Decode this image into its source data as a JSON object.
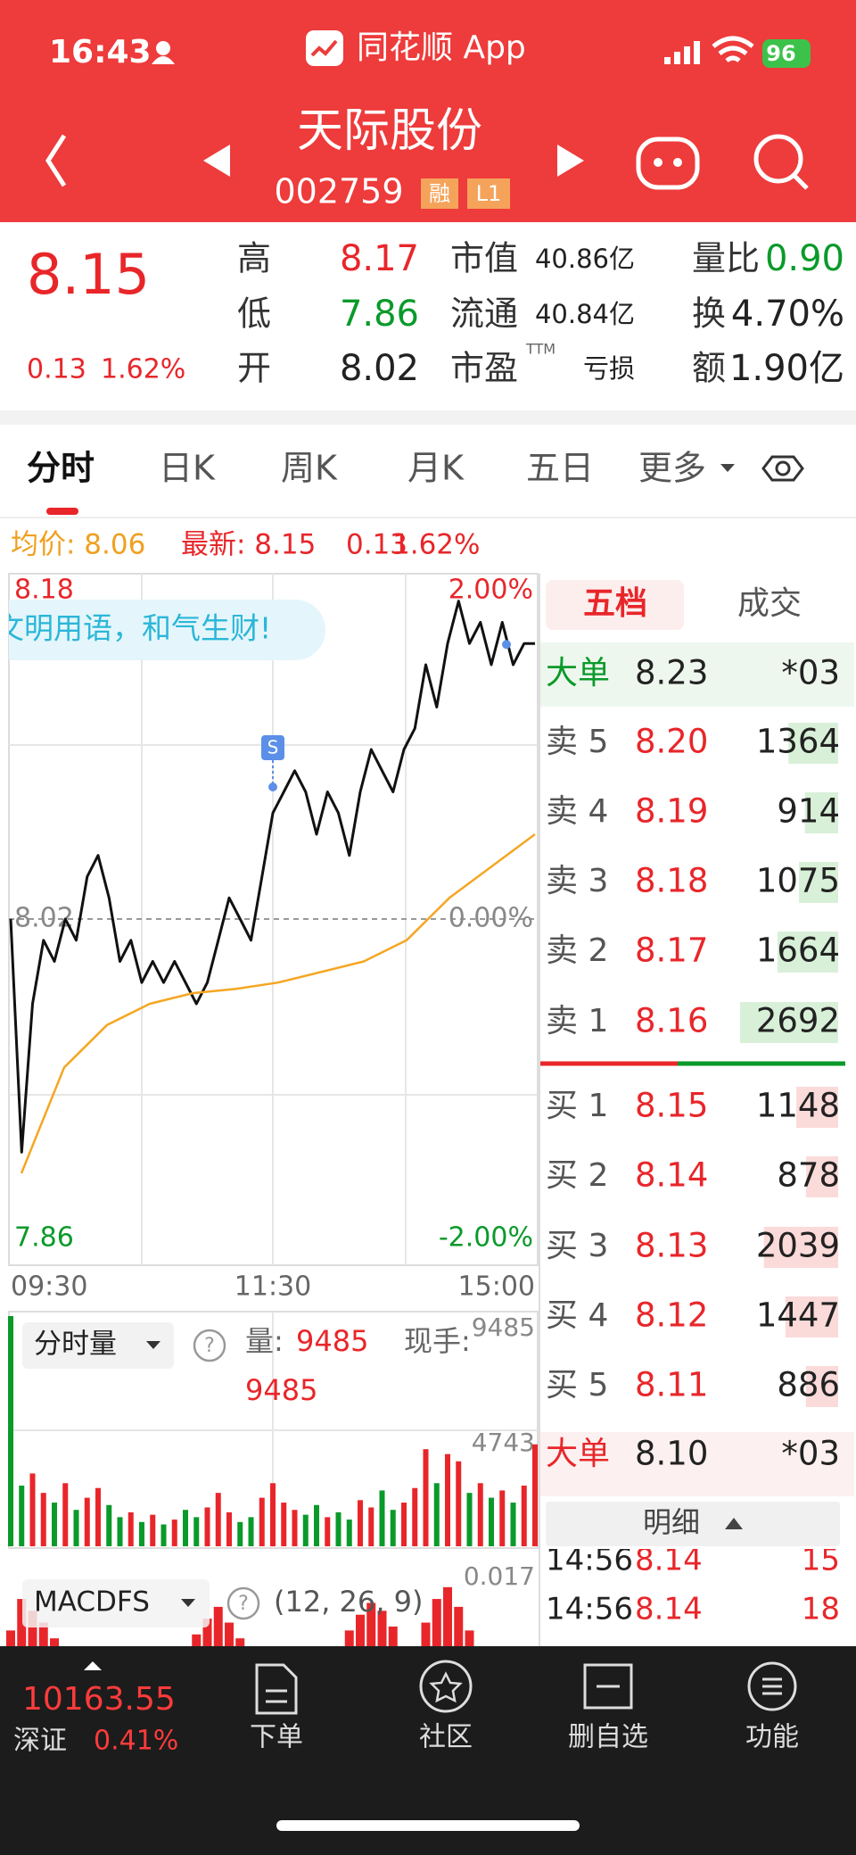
{
  "status_bar": {
    "time": "16:43",
    "app": "同花顺 App",
    "battery": "96"
  },
  "header": {
    "title": "天际股份",
    "code": "002759",
    "badges": [
      "融",
      "L1"
    ]
  },
  "quote": {
    "price": "8.15",
    "change": "0.13",
    "change_pct": "1.62%",
    "stats": [
      [
        "高",
        "8.17"
      ],
      [
        "低",
        "7.86"
      ],
      [
        "开",
        "8.02"
      ],
      [
        "市值",
        "40.86亿"
      ],
      [
        "流通",
        "40.84亿"
      ],
      [
        "市盈",
        "亏损"
      ],
      [
        "量比",
        "0.90"
      ],
      [
        "换",
        "4.70%"
      ],
      [
        "额",
        "1.90亿"
      ]
    ],
    "ttm": "TTM"
  },
  "tabs": [
    "分时",
    "日K",
    "周K",
    "月K",
    "五日",
    "更多"
  ],
  "info_bar": {
    "avg": "均价: 8.06",
    "latest": "最新: 8.15",
    "change": "0.13",
    "change_pct": "1.62%"
  },
  "banner": "文明用语，和气生财!",
  "chart_data": [
    {
      "type": "line",
      "ylim": [
        7.86,
        8.18
      ],
      "yticks": [
        7.86,
        8.02,
        8.18
      ],
      "right_ticks": [
        "-2.00%",
        "0.00%",
        "2.00%"
      ],
      "x_labels": [
        "09:30",
        "11:30",
        "15:00"
      ],
      "annotation": "S",
      "series": [
        {
          "color": "#111111",
          "values": [
            8.02,
            7.91,
            7.98,
            8.01,
            8.0,
            8.02,
            8.01,
            8.04,
            8.05,
            8.03,
            8.0,
            8.01,
            7.99,
            8.0,
            7.99,
            8.0,
            7.99,
            7.98,
            7.99,
            8.01,
            8.03,
            8.02,
            8.01,
            8.04,
            8.07,
            8.08,
            8.09,
            8.08,
            8.06,
            8.08,
            8.07,
            8.05,
            8.08,
            8.1,
            8.09,
            8.08,
            8.1,
            8.11,
            8.14,
            8.12,
            8.15,
            8.17,
            8.15,
            8.16,
            8.14,
            8.16,
            8.14,
            8.15,
            8.15
          ]
        },
        {
          "color": "#f5a623",
          "values": [
            7.9,
            7.95,
            7.97,
            7.98,
            7.985,
            7.987,
            7.99,
            7.995,
            8.0,
            8.01,
            8.03,
            8.045,
            8.06
          ]
        }
      ]
    },
    {
      "type": "bar",
      "title": "分时量",
      "volume_label": "量:",
      "volume": "9485",
      "hand_label": "现手:",
      "hand": "9485",
      "ylim": [
        0,
        9485
      ],
      "yticks": [
        4743,
        9485
      ],
      "values": [
        9485,
        2500,
        3000,
        2200,
        1800,
        2600,
        1500,
        2000,
        2400,
        1700,
        1200,
        1400,
        1000,
        1300,
        900,
        1100,
        1500,
        1200,
        1600,
        2200,
        1400,
        1000,
        1200,
        2000,
        2600,
        1800,
        1500,
        1300,
        1700,
        1200,
        1400,
        1100,
        1900,
        1600,
        2300,
        1500,
        1800,
        2400,
        4000,
        2600,
        3800,
        3500,
        2200,
        2600,
        2000,
        2300,
        1800,
        2500,
        4200
      ]
    },
    {
      "type": "bar",
      "title": "MACDFS",
      "params": "(12, 26, 9)",
      "ylim": [
        0,
        0.017
      ],
      "yticks": [
        0.017
      ],
      "values": [
        0.004,
        0.012,
        0.009,
        0.006,
        0.002,
        0,
        0,
        0,
        0,
        0,
        0,
        0,
        0,
        0,
        0,
        0,
        0,
        0.003,
        0.007,
        0.01,
        0.006,
        0.002,
        0,
        0,
        0,
        0,
        0,
        0,
        0,
        0,
        0,
        0.004,
        0.008,
        0.011,
        0.009,
        0.005,
        0,
        0,
        0.006,
        0.012,
        0.015,
        0.01,
        0.004,
        0,
        0,
        0,
        0,
        0,
        0
      ]
    }
  ],
  "order_book": {
    "tabs": [
      "五档",
      "成交"
    ],
    "rows": [
      {
        "label": "大单",
        "price": "8.23",
        "volume": "*03"
      },
      {
        "label": "卖 5",
        "price": "8.20",
        "volume": 1364
      },
      {
        "label": "卖 4",
        "price": "8.19",
        "volume": 914
      },
      {
        "label": "卖 3",
        "price": "8.18",
        "volume": 1075
      },
      {
        "label": "卖 2",
        "price": "8.17",
        "volume": 1664
      },
      {
        "label": "卖 1",
        "price": "8.16",
        "volume": 2692
      },
      {
        "label": "买 1",
        "price": "8.15",
        "volume": 1148
      },
      {
        "label": "买 2",
        "price": "8.14",
        "volume": 878
      },
      {
        "label": "买 3",
        "price": "8.13",
        "volume": 2039
      },
      {
        "label": "买 4",
        "price": "8.12",
        "volume": 1447
      },
      {
        "label": "买 5",
        "price": "8.11",
        "volume": 886
      },
      {
        "label": "大单",
        "price": "8.10",
        "volume": "*03"
      }
    ],
    "detail": "明细"
  },
  "trades": [
    [
      "14:56",
      "8.14",
      "15"
    ],
    [
      "14:56",
      "8.14",
      "18"
    ]
  ],
  "footer": {
    "index_value": "10163.55",
    "index_name": "深证",
    "index_change": "0.41%",
    "nav": [
      "下单",
      "社区",
      "删自选",
      "功能"
    ]
  }
}
